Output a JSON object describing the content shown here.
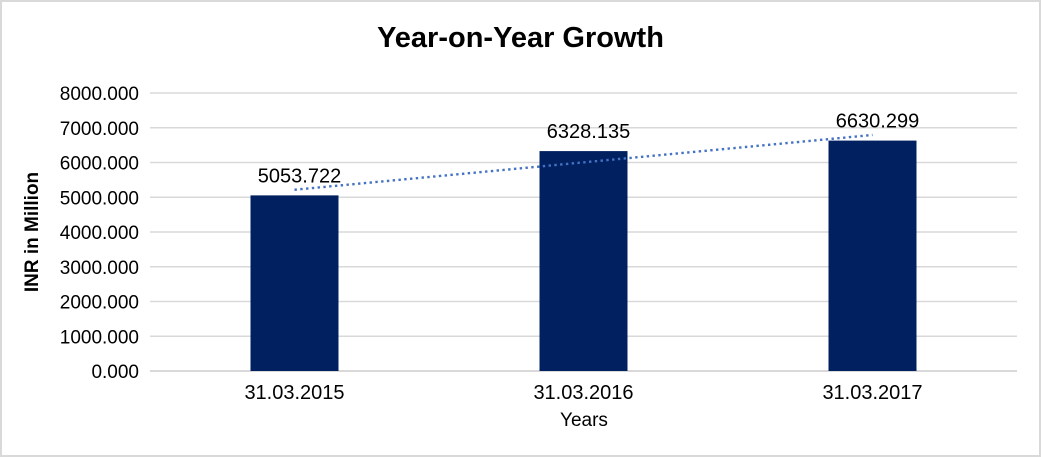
{
  "chart_data": {
    "type": "bar",
    "title": "Year-on-Year Growth",
    "xlabel": "Years",
    "ylabel": "INR in Million",
    "categories": [
      "31.03.2015",
      "31.03.2016",
      "31.03.2017"
    ],
    "values": [
      5053.722,
      6328.135,
      6630.299
    ],
    "data_labels": [
      "5053.722",
      "6328.135",
      "6630.299"
    ],
    "ytick_labels": [
      "0.000",
      "1000.000",
      "2000.000",
      "3000.000",
      "4000.000",
      "5000.000",
      "6000.000",
      "7000.000",
      "8000.000"
    ],
    "ytick_values": [
      0,
      1000,
      2000,
      3000,
      4000,
      5000,
      6000,
      7000,
      8000
    ],
    "ylim": [
      0,
      8000
    ],
    "grid": true,
    "legend": "none",
    "bar_color": "#002060",
    "gridline_color": "#d9d9d9",
    "axis_line_color": "#d9d9d9",
    "text_color": "#000000",
    "trendline": {
      "type": "linear",
      "style": "dotted",
      "color": "#4472c4"
    }
  }
}
